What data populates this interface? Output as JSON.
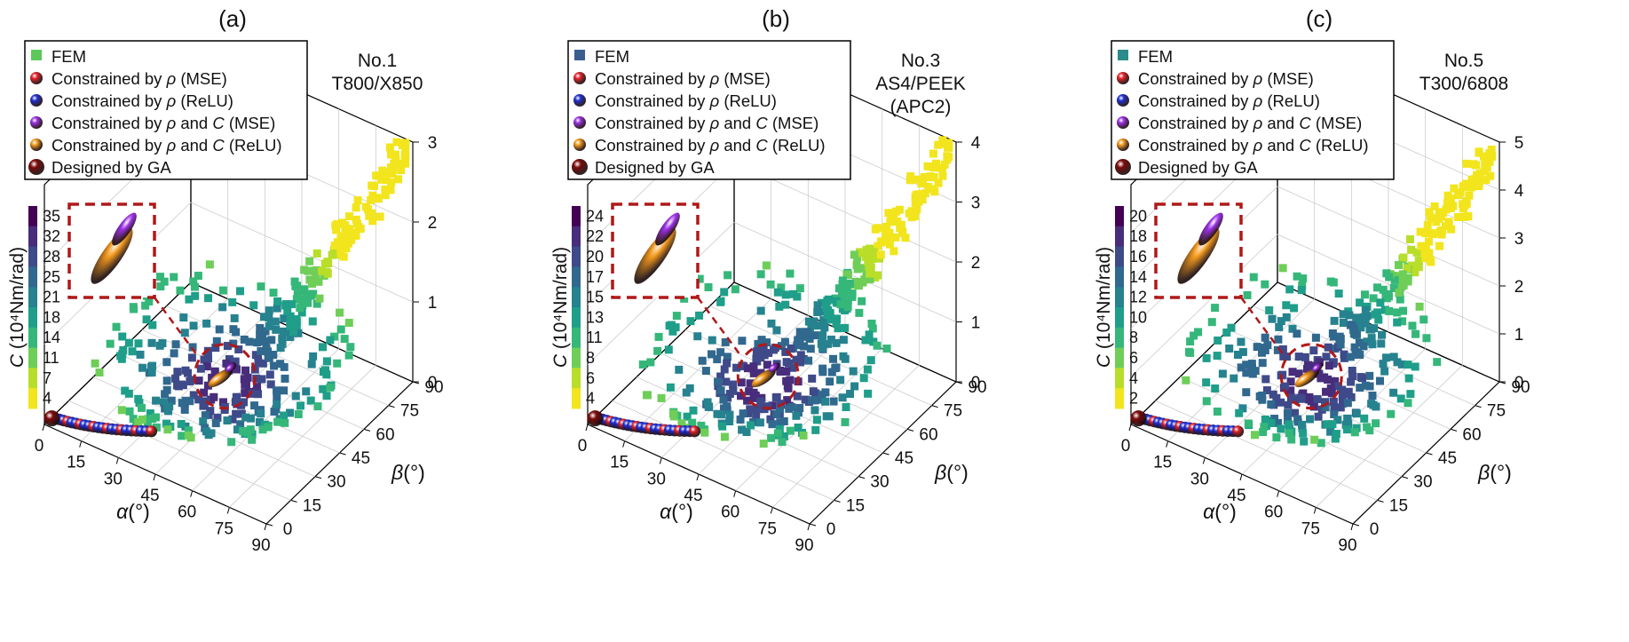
{
  "figure": {
    "panels": [
      {
        "label": "(a)",
        "material_no": "No.1",
        "material_lines": [
          "T800/X850"
        ],
        "fem_color": "#5cc85c",
        "legend": [
          {
            "text": "FEM",
            "marker": "square"
          },
          {
            "text": "Constrained by ρ (MSE)",
            "marker": "sphere",
            "color": "#e3242b"
          },
          {
            "text": "Constrained by ρ (ReLU)",
            "marker": "sphere",
            "color": "#1f2fd6"
          },
          {
            "text": "Constrained by ρ and C (MSE)",
            "marker": "sphere",
            "color": "#9b30e8"
          },
          {
            "text": "Constrained by ρ and C (ReLU)",
            "marker": "sphere",
            "color": "#f39a1e"
          },
          {
            "text": "Designed by GA",
            "marker": "sphere",
            "color": "#7a0a0a"
          }
        ],
        "colorbar": {
          "label": "C (10⁴Nm/rad)",
          "ticks": [
            "35",
            "32",
            "28",
            "25",
            "21",
            "18",
            "14",
            "11",
            "7",
            "4"
          ]
        },
        "z_ticks": [
          "0",
          "1",
          "2",
          "3"
        ],
        "alpha_label": "α(°)",
        "beta_label": "β(°)",
        "alpha_ticks": [
          "0",
          "15",
          "30",
          "45",
          "60",
          "75",
          "90"
        ],
        "beta_ticks": [
          "0",
          "15",
          "30",
          "45",
          "60",
          "75",
          "90"
        ]
      },
      {
        "label": "(b)",
        "material_no": "No.3",
        "material_lines": [
          "AS4/PEEK",
          "(APC2)"
        ],
        "fem_color": "#3a5f8f",
        "legend": [
          {
            "text": "FEM",
            "marker": "square"
          },
          {
            "text": "Constrained by ρ (MSE)",
            "marker": "sphere",
            "color": "#e3242b"
          },
          {
            "text": "Constrained by ρ (ReLU)",
            "marker": "sphere",
            "color": "#1f2fd6"
          },
          {
            "text": "Constrained by ρ and C (MSE)",
            "marker": "sphere",
            "color": "#9b30e8"
          },
          {
            "text": "Constrained by ρ and C (ReLU)",
            "marker": "sphere",
            "color": "#f39a1e"
          },
          {
            "text": "Designed by GA",
            "marker": "sphere",
            "color": "#7a0a0a"
          }
        ],
        "colorbar": {
          "label": "C (10⁴Nm/rad)",
          "ticks": [
            "24",
            "22",
            "20",
            "17",
            "15",
            "13",
            "11",
            "8",
            "6",
            "4"
          ]
        },
        "z_ticks": [
          "0",
          "1",
          "2",
          "3",
          "4"
        ],
        "alpha_label": "α(°)",
        "beta_label": "β(°)",
        "alpha_ticks": [
          "0",
          "15",
          "30",
          "45",
          "60",
          "75",
          "90"
        ],
        "beta_ticks": [
          "0",
          "15",
          "30",
          "45",
          "60",
          "75",
          "90"
        ]
      },
      {
        "label": "(c)",
        "material_no": "No.5",
        "material_lines": [
          "T300/6808"
        ],
        "fem_color": "#2b8a8a",
        "legend": [
          {
            "text": "FEM",
            "marker": "square"
          },
          {
            "text": "Constrained by ρ (MSE)",
            "marker": "sphere",
            "color": "#e3242b"
          },
          {
            "text": "Constrained by ρ (ReLU)",
            "marker": "sphere",
            "color": "#1f2fd6"
          },
          {
            "text": "Constrained by ρ and C (MSE)",
            "marker": "sphere",
            "color": "#9b30e8"
          },
          {
            "text": "Constrained by ρ and C (ReLU)",
            "marker": "sphere",
            "color": "#f39a1e"
          },
          {
            "text": "Designed by GA",
            "marker": "sphere",
            "color": "#7a0a0a"
          }
        ],
        "colorbar": {
          "label": "C (10⁴Nm/rad)",
          "ticks": [
            "20",
            "18",
            "16",
            "14",
            "12",
            "10",
            "8",
            "6",
            "4",
            "2"
          ]
        },
        "z_ticks": [
          "0",
          "1",
          "2",
          "3",
          "4",
          "5"
        ],
        "alpha_label": "α(°)",
        "beta_label": "β(°)",
        "alpha_ticks": [
          "0",
          "15",
          "30",
          "45",
          "60",
          "75",
          "90"
        ],
        "beta_ticks": [
          "0",
          "15",
          "30",
          "45",
          "60",
          "75",
          "90"
        ]
      }
    ],
    "colormap": [
      "#f2e51d",
      "#b8de29",
      "#6ece58",
      "#35b779",
      "#1f9e89",
      "#26828e",
      "#31688e",
      "#3e4a89",
      "#472d7b",
      "#440154"
    ]
  },
  "chart_data": [
    {
      "type": "scatter",
      "title": "(a)",
      "annotation": "No.1 T800/X850",
      "xlabel": "α(°)",
      "ylabel": "β(°)",
      "zlabel": "",
      "colorbar_label": "C (10⁴Nm/rad)",
      "xlim": [
        0,
        90
      ],
      "ylim": [
        0,
        90
      ],
      "zlim": [
        0,
        3
      ],
      "clim": [
        4,
        35
      ],
      "series": [
        {
          "name": "FEM"
        },
        {
          "name": "Constrained by ρ (MSE)"
        },
        {
          "name": "Constrained by ρ (ReLU)"
        },
        {
          "name": "Constrained by ρ and C (MSE)"
        },
        {
          "name": "Constrained by ρ and C (ReLU)"
        },
        {
          "name": "Designed by GA"
        }
      ]
    },
    {
      "type": "scatter",
      "title": "(b)",
      "annotation": "No.3 AS4/PEEK (APC2)",
      "xlabel": "α(°)",
      "ylabel": "β(°)",
      "zlabel": "",
      "colorbar_label": "C (10⁴Nm/rad)",
      "xlim": [
        0,
        90
      ],
      "ylim": [
        0,
        90
      ],
      "zlim": [
        0,
        4
      ],
      "clim": [
        4,
        24
      ],
      "series": [
        {
          "name": "FEM"
        },
        {
          "name": "Constrained by ρ (MSE)"
        },
        {
          "name": "Constrained by ρ (ReLU)"
        },
        {
          "name": "Constrained by ρ and C (MSE)"
        },
        {
          "name": "Constrained by ρ and C (ReLU)"
        },
        {
          "name": "Designed by GA"
        }
      ]
    },
    {
      "type": "scatter",
      "title": "(c)",
      "annotation": "No.5 T300/6808",
      "xlabel": "α(°)",
      "ylabel": "β(°)",
      "zlabel": "",
      "colorbar_label": "C (10⁴Nm/rad)",
      "xlim": [
        0,
        90
      ],
      "ylim": [
        0,
        90
      ],
      "zlim": [
        0,
        5
      ],
      "clim": [
        2,
        20
      ],
      "series": [
        {
          "name": "FEM"
        },
        {
          "name": "Constrained by ρ (MSE)"
        },
        {
          "name": "Constrained by ρ (ReLU)"
        },
        {
          "name": "Constrained by ρ and C (MSE)"
        },
        {
          "name": "Constrained by ρ and C (ReLU)"
        },
        {
          "name": "Designed by GA"
        }
      ]
    }
  ]
}
